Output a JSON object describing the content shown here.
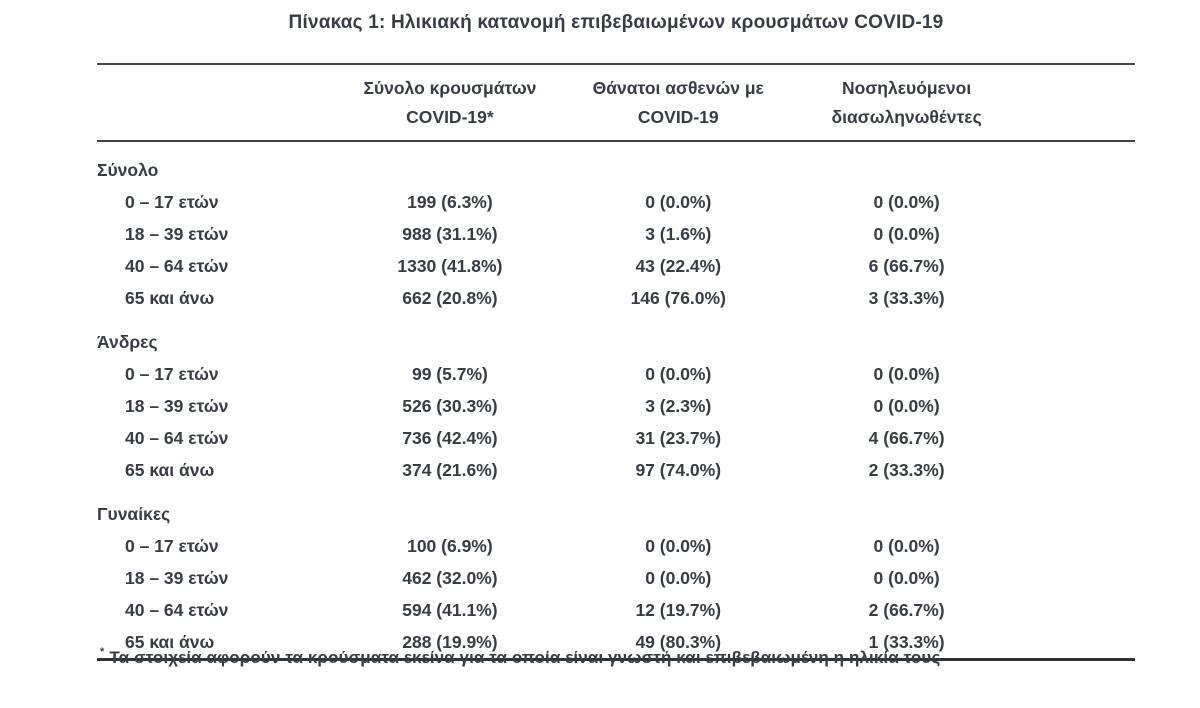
{
  "title": "Πίνακας 1: Ηλικιακή κατανομή επιβεβαιωμένων κρουσμάτων COVID-19",
  "header": {
    "cases": {
      "line1": "Σύνολο κρουσμάτων",
      "line2": "COVID-19*"
    },
    "deaths": {
      "line1": "Θάνατοι ασθενών με",
      "line2": "COVID-19"
    },
    "intubated": {
      "line1": "Νοσηλευόμενοι",
      "line2": "διασωληνωθέντες"
    }
  },
  "sections": [
    {
      "label": "Σύνολο",
      "rows": [
        {
          "age": "0 – 17 ετών",
          "cases": "199 (6.3%)",
          "deaths": "0 (0.0%)",
          "intubated": "0 (0.0%)"
        },
        {
          "age": "18 – 39 ετών",
          "cases": "988 (31.1%)",
          "deaths": "3 (1.6%)",
          "intubated": "0 (0.0%)"
        },
        {
          "age": "40 – 64 ετών",
          "cases": "1330 (41.8%)",
          "deaths": "43 (22.4%)",
          "intubated": "6 (66.7%)"
        },
        {
          "age": "65 και άνω",
          "cases": "662 (20.8%)",
          "deaths": "146 (76.0%)",
          "intubated": "3 (33.3%)"
        }
      ]
    },
    {
      "label": "Άνδρες",
      "rows": [
        {
          "age": "0 – 17 ετών",
          "cases": "99 (5.7%)",
          "deaths": "0 (0.0%)",
          "intubated": "0 (0.0%)"
        },
        {
          "age": "18 – 39 ετών",
          "cases": "526 (30.3%)",
          "deaths": "3 (2.3%)",
          "intubated": "0 (0.0%)"
        },
        {
          "age": "40 – 64 ετών",
          "cases": "736 (42.4%)",
          "deaths": "31 (23.7%)",
          "intubated": "4 (66.7%)"
        },
        {
          "age": "65 και άνω",
          "cases": "374 (21.6%)",
          "deaths": "97 (74.0%)",
          "intubated": "2 (33.3%)"
        }
      ]
    },
    {
      "label": "Γυναίκες",
      "rows": [
        {
          "age": "0 – 17 ετών",
          "cases": "100 (6.9%)",
          "deaths": "0 (0.0%)",
          "intubated": "0 (0.0%)"
        },
        {
          "age": "18 – 39 ετών",
          "cases": "462 (32.0%)",
          "deaths": "0 (0.0%)",
          "intubated": "0 (0.0%)"
        },
        {
          "age": "40 – 64 ετών",
          "cases": "594 (41.1%)",
          "deaths": "12 (19.7%)",
          "intubated": "2 (66.7%)"
        },
        {
          "age": "65 και άνω",
          "cases": "288 (19.9%)",
          "deaths": "49 (80.3%)",
          "intubated": "1 (33.3%)"
        }
      ]
    }
  ],
  "footnote": {
    "marker": "*",
    "text": "Τα στοιχεία αφορούν τα κρούσματα εκείνα για τα οποία είναι γνωστή και επιβεβαιωμένη η ηλικία τους"
  },
  "colors": {
    "text": "#373c45",
    "rule_top": "#43474e",
    "rule_bottom": "#2f3338"
  }
}
